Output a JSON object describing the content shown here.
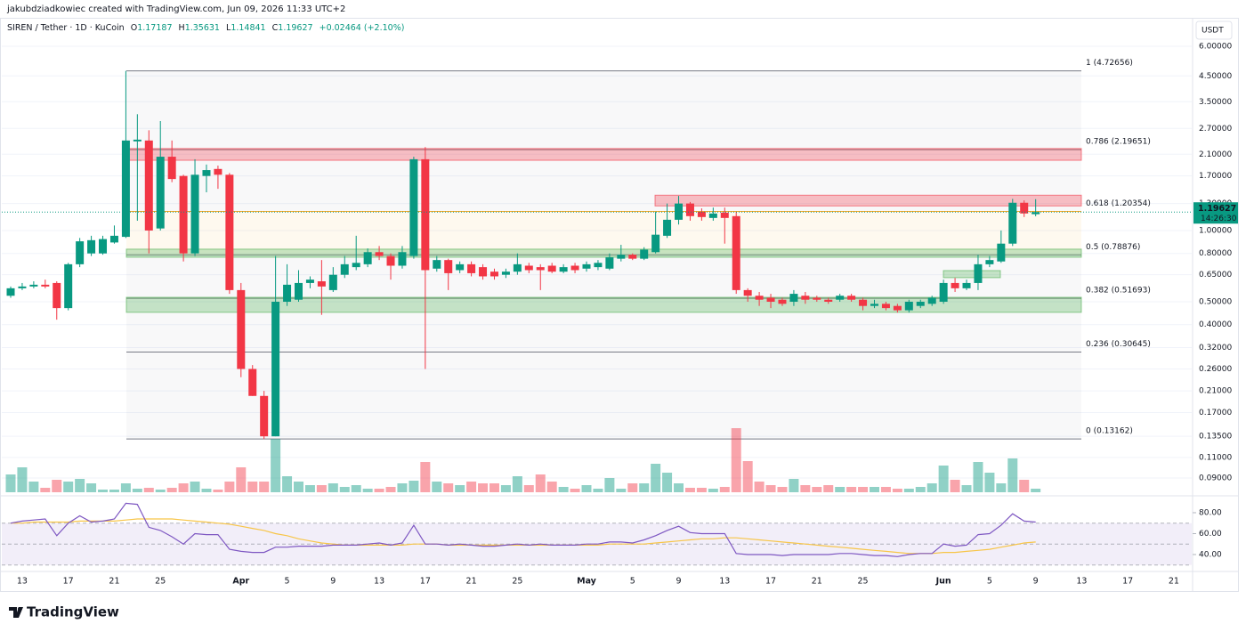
{
  "header": {
    "credit": "jakubdziadkowiec created with TradingView.com, Jun 09, 2026 11:33 UTC+2",
    "symbol": "SIREN / Tether · 1D · KuCoin",
    "open_label": "O",
    "high_label": "H",
    "low_label": "L",
    "close_label": "C",
    "change": "+0.02464 (+2.10%)"
  },
  "footer": {
    "logo": "TradingView"
  },
  "chart_data": [
    {
      "type": "candlestick",
      "currency": "USDT",
      "countdown": "14:26:30",
      "log_scale": true,
      "up_color": "#089981",
      "down_color": "#f23645",
      "categories": [
        null,
        "13",
        null,
        null,
        null,
        "17",
        null,
        null,
        null,
        "21",
        null,
        null,
        null,
        "25",
        null,
        null,
        null,
        null,
        null,
        null,
        "Apr",
        null,
        null,
        null,
        "5",
        null,
        null,
        null,
        "9",
        null,
        null,
        null,
        "13",
        null,
        null,
        null,
        "17",
        null,
        null,
        null,
        "21",
        null,
        null,
        null,
        "25",
        null,
        null,
        null,
        null,
        null,
        "May",
        null,
        null,
        null,
        "5",
        null,
        null,
        null,
        "9",
        null,
        null,
        null,
        "13",
        null,
        null,
        null,
        "17",
        null,
        null,
        null,
        "21",
        null,
        null,
        null,
        "25",
        null,
        null,
        null,
        null,
        null,
        null,
        "Jun",
        null,
        null,
        null,
        "5",
        null,
        null,
        null,
        "9",
        null,
        null,
        null,
        "13",
        null,
        null,
        null,
        "17",
        null,
        null,
        null,
        "21",
        null
      ],
      "open": [
        0.53,
        0.57,
        0.58,
        0.59,
        0.6,
        0.47,
        0.72,
        0.8,
        0.8,
        0.89,
        0.94,
        2.38,
        2.4,
        1.02,
        2.05,
        1.7,
        0.8,
        1.7,
        1.82,
        1.72,
        0.56,
        0.26,
        0.2,
        0.135,
        0.5,
        0.51,
        0.6,
        0.61,
        0.56,
        0.65,
        0.7,
        0.72,
        0.81,
        0.78,
        0.71,
        0.78,
        2.0,
        0.69,
        0.75,
        0.68,
        0.72,
        0.7,
        0.67,
        0.65,
        0.67,
        0.71,
        0.7,
        0.71,
        0.67,
        0.71,
        0.69,
        0.7,
        0.69,
        0.76,
        0.79,
        0.76,
        0.81,
        0.95,
        1.11,
        1.3,
        1.2,
        1.13,
        1.19,
        1.15,
        0.56,
        0.53,
        0.52,
        0.51,
        0.5,
        0.53,
        0.52,
        0.51,
        0.51,
        0.53,
        0.51,
        0.48,
        0.49,
        0.48,
        0.46,
        0.48,
        0.49,
        0.5,
        0.6,
        0.57,
        0.6,
        0.72,
        0.74,
        0.88,
        1.31,
        1.17187,
        null,
        null,
        null,
        null,
        null,
        null,
        null,
        null,
        null,
        null,
        null,
        null,
        null
      ],
      "high": [
        0.58,
        0.6,
        0.61,
        0.62,
        0.61,
        0.73,
        0.93,
        0.95,
        0.95,
        1.05,
        4.72656,
        3.1,
        2.65,
        2.9,
        2.4,
        1.72,
        2.0,
        1.9,
        1.88,
        1.75,
        0.6,
        0.27,
        0.21,
        0.78,
        0.72,
        0.68,
        0.64,
        0.75,
        0.7,
        0.78,
        0.95,
        0.84,
        0.86,
        0.8,
        0.86,
        2.05,
        2.25,
        0.78,
        0.76,
        0.74,
        0.74,
        0.72,
        0.69,
        0.69,
        0.8,
        0.73,
        0.72,
        0.73,
        0.72,
        0.73,
        0.74,
        0.75,
        0.8,
        0.87,
        0.8,
        0.85,
        1.2,
        1.3,
        1.4,
        1.32,
        1.24,
        1.25,
        1.25,
        1.2,
        0.57,
        0.55,
        0.54,
        0.52,
        0.56,
        0.55,
        0.53,
        0.52,
        0.54,
        0.54,
        0.52,
        0.51,
        0.5,
        0.49,
        0.51,
        0.51,
        0.53,
        0.62,
        0.63,
        0.62,
        0.79,
        0.78,
        1.0,
        1.36,
        1.34,
        1.35631,
        null,
        null,
        null,
        null,
        null,
        null,
        null,
        null,
        null,
        null,
        null,
        null,
        null
      ],
      "low": [
        0.52,
        0.56,
        0.57,
        0.57,
        0.42,
        0.46,
        0.7,
        0.78,
        0.79,
        0.88,
        0.93,
        1.1,
        0.8,
        1.0,
        1.6,
        0.74,
        0.78,
        1.45,
        1.5,
        0.54,
        0.24,
        0.2,
        0.13162,
        0.135,
        0.48,
        0.5,
        0.57,
        0.44,
        0.55,
        0.63,
        0.68,
        0.7,
        0.75,
        0.62,
        0.69,
        0.76,
        0.26,
        0.67,
        0.56,
        0.66,
        0.64,
        0.62,
        0.62,
        0.63,
        0.65,
        0.66,
        0.56,
        0.66,
        0.66,
        0.66,
        0.67,
        0.68,
        0.68,
        0.74,
        0.75,
        0.75,
        0.8,
        0.93,
        1.06,
        1.1,
        1.1,
        1.1,
        0.88,
        0.54,
        0.5,
        0.48,
        0.47,
        0.48,
        0.48,
        0.49,
        0.5,
        0.49,
        0.5,
        0.5,
        0.46,
        0.47,
        0.46,
        0.45,
        0.45,
        0.47,
        0.48,
        0.49,
        0.55,
        0.56,
        0.56,
        0.7,
        0.73,
        0.86,
        1.14,
        1.14841,
        null,
        null,
        null,
        null,
        null,
        null,
        null,
        null,
        null,
        null,
        null,
        null,
        null
      ],
      "close": [
        0.57,
        0.58,
        0.59,
        0.58,
        0.47,
        0.72,
        0.9,
        0.91,
        0.92,
        0.95,
        2.4,
        2.42,
        1.0,
        2.05,
        1.65,
        0.8,
        1.72,
        1.8,
        1.72,
        0.56,
        0.26,
        0.2,
        0.135,
        0.5,
        0.59,
        0.6,
        0.62,
        0.58,
        0.65,
        0.72,
        0.73,
        0.81,
        0.78,
        0.71,
        0.81,
        2.0,
        0.68,
        0.75,
        0.66,
        0.72,
        0.66,
        0.64,
        0.64,
        0.67,
        0.72,
        0.68,
        0.68,
        0.67,
        0.7,
        0.68,
        0.72,
        0.73,
        0.77,
        0.79,
        0.76,
        0.83,
        0.96,
        1.11,
        1.3,
        1.15,
        1.14,
        1.18,
        1.13,
        0.56,
        0.53,
        0.51,
        0.5,
        0.49,
        0.54,
        0.51,
        0.51,
        0.5,
        0.53,
        0.51,
        0.48,
        0.49,
        0.47,
        0.46,
        0.5,
        0.5,
        0.52,
        0.6,
        0.57,
        0.6,
        0.72,
        0.75,
        0.88,
        1.31,
        1.18,
        1.19627,
        null,
        null,
        null,
        null,
        null,
        null,
        null,
        null,
        null,
        null,
        null,
        null,
        null
      ],
      "ylim": [
        0.077,
        6.66
      ],
      "yticks": [
        {
          "value": 6,
          "label": "6.00000"
        },
        {
          "value": 4.5,
          "label": "4.50000"
        },
        {
          "value": 3.5,
          "label": "3.50000"
        },
        {
          "value": 2.7,
          "label": "2.70000"
        },
        {
          "value": 2.1,
          "label": "2.10000"
        },
        {
          "value": 1.7,
          "label": "1.70000"
        },
        {
          "value": 1.3,
          "label": "1.30000"
        },
        {
          "value": 1,
          "label": "1.00000"
        },
        {
          "value": 0.8,
          "label": "0.80000"
        },
        {
          "value": 0.65,
          "label": "0.65000"
        },
        {
          "value": 0.5,
          "label": "0.50000"
        },
        {
          "value": 0.4,
          "label": "0.40000"
        },
        {
          "value": 0.32,
          "label": "0.32000"
        },
        {
          "value": 0.26,
          "label": "0.26000"
        },
        {
          "value": 0.21,
          "label": "0.21000"
        },
        {
          "value": 0.17,
          "label": "0.17000"
        },
        {
          "value": 0.135,
          "label": "0.13500"
        },
        {
          "value": 0.11,
          "label": "0.11000"
        },
        {
          "value": 0.09,
          "label": "0.09000"
        }
      ],
      "fib_levels": [
        {
          "value": 4.72656,
          "label": "1 (4.72656)",
          "color": "#787b86"
        },
        {
          "value": 2.19651,
          "label": "0.786 (2.19651)",
          "color": "#787b86"
        },
        {
          "value": 1.20354,
          "label": "0.618 (1.20354)",
          "color": "#f5a623"
        },
        {
          "value": 0.78876,
          "label": "0.5 (0.78876)",
          "color": "#787b86"
        },
        {
          "value": 0.51693,
          "label": "0.382 (0.51693)",
          "color": "#787b86"
        },
        {
          "value": 0.30645,
          "label": "0.236 (0.30645)",
          "color": "#787b86"
        },
        {
          "value": 0.13162,
          "label": "0 (0.13162)",
          "color": "#787b86"
        }
      ],
      "zones": [
        {
          "top": 2.22,
          "bottom": 1.98,
          "color": "#f23645"
        },
        {
          "top": 1.41,
          "bottom": 1.27,
          "color": "#f23645"
        },
        {
          "top": 0.834,
          "bottom": 0.771,
          "color": "#4caf50"
        },
        {
          "top": 0.522,
          "bottom": 0.451,
          "color": "#4caf50"
        },
        {
          "top": 0.677,
          "bottom": 0.632,
          "color": "#4caf50"
        }
      ]
    },
    {
      "type": "bar",
      "values": [
        20,
        28,
        12,
        5,
        14,
        12,
        15,
        10,
        3,
        3,
        10,
        4,
        5,
        3,
        5,
        10,
        12,
        4,
        3,
        12,
        28,
        12,
        12,
        60,
        18,
        12,
        8,
        8,
        10,
        6,
        8,
        4,
        4,
        6,
        10,
        13,
        34,
        12,
        10,
        8,
        12,
        10,
        10,
        8,
        18,
        8,
        20,
        12,
        6,
        4,
        8,
        4,
        16,
        4,
        10,
        10,
        32,
        22,
        10,
        5,
        5,
        4,
        6,
        72,
        35,
        12,
        8,
        6,
        15,
        8,
        6,
        8,
        6,
        6,
        6,
        6,
        6,
        4,
        4,
        6,
        10,
        30,
        14,
        8,
        34,
        22,
        10,
        38,
        14,
        4,
        null,
        null,
        null,
        null,
        null,
        null,
        null,
        null,
        null,
        null,
        null,
        null,
        null
      ]
    },
    {
      "type": "line",
      "series": [
        {
          "color": "#7e57c2",
          "values": [
            70,
            72,
            73,
            74,
            58,
            70,
            77,
            71,
            72,
            74,
            89,
            88,
            66,
            63,
            57,
            50,
            60,
            59,
            59,
            45,
            43,
            42,
            42,
            47,
            47,
            48,
            48,
            48,
            49,
            49,
            49,
            50,
            51,
            49,
            51,
            68,
            50,
            50,
            49,
            50,
            49,
            48,
            48,
            49,
            50,
            49,
            50,
            49,
            49,
            49,
            50,
            50,
            52,
            52,
            51,
            54,
            58,
            63,
            67,
            61,
            60,
            60,
            60,
            41,
            40,
            40,
            40,
            39,
            40,
            40,
            40,
            40,
            41,
            41,
            40,
            39,
            39,
            38,
            40,
            41,
            41,
            50,
            48,
            49,
            59,
            60,
            68,
            79,
            72,
            71,
            null,
            null,
            null,
            null,
            null,
            null,
            null,
            null,
            null,
            null,
            null,
            null,
            null
          ]
        },
        {
          "color": "#f7c548",
          "values": [
            70,
            70,
            71,
            71,
            71,
            71,
            72,
            72,
            72,
            72,
            73,
            74,
            74,
            74,
            74,
            73,
            72,
            71,
            70,
            69,
            67,
            65,
            63,
            60,
            58,
            55,
            53,
            51,
            50,
            49,
            49,
            49,
            49,
            49,
            49,
            50,
            50,
            50,
            49,
            49,
            49,
            49,
            49,
            49,
            49,
            49,
            49,
            49,
            49,
            49,
            49,
            49,
            50,
            50,
            50,
            50,
            51,
            52,
            53,
            54,
            55,
            55,
            56,
            56,
            55,
            54,
            53,
            52,
            51,
            50,
            49,
            48,
            47,
            46,
            45,
            44,
            43,
            42,
            41,
            41,
            41,
            42,
            42,
            43,
            44,
            45,
            47,
            49,
            51,
            52,
            null,
            null,
            null,
            null,
            null,
            null,
            null,
            null,
            null,
            null,
            null,
            null,
            null
          ]
        }
      ],
      "ylim": [
        25.5,
        93.6
      ],
      "yticks": [
        {
          "value": 80,
          "label": "80.00"
        },
        {
          "value": 60,
          "label": "60.00"
        },
        {
          "value": 40,
          "label": "40.00"
        }
      ],
      "levels": [
        70,
        50,
        30
      ]
    }
  ]
}
